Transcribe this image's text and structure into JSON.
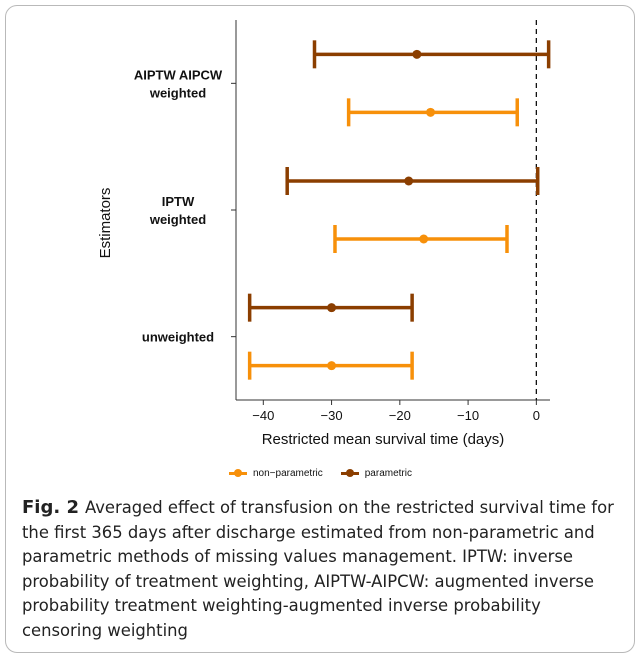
{
  "chart_data": {
    "type": "errorbar",
    "xlabel": "Restricted mean survival time (days)",
    "ylabel": "Estimators",
    "xlim": [
      -44,
      2
    ],
    "xticks": [
      -40,
      -30,
      -20,
      -10,
      0
    ],
    "reference_line": 0,
    "categories": [
      "AIPTW AIPCW weighted",
      "IPTW weighted",
      "unweighted"
    ],
    "category_label_lines": [
      [
        "AIPTW AIPCW",
        "weighted"
      ],
      [
        "IPTW",
        "weighted"
      ],
      [
        "unweighted"
      ]
    ],
    "legend_position": "bottom",
    "series": [
      {
        "name": "non−parametric",
        "color": "#F7900A",
        "estimates": [
          -15.5,
          -16.5,
          -30.0
        ],
        "lower": [
          -27.5,
          -29.5,
          -42.0
        ],
        "upper": [
          -2.8,
          -4.3,
          -18.2
        ]
      },
      {
        "name": "parametric",
        "color": "#8B3E00",
        "estimates": [
          -17.5,
          -18.7,
          -30.0
        ],
        "lower": [
          -32.5,
          -36.5,
          -42.0
        ],
        "upper": [
          1.8,
          0.2,
          -18.2
        ]
      }
    ]
  },
  "caption": {
    "label": "Fig. 2",
    "text": "Averaged effect of transfusion on the restricted survival time for the first 365 days after discharge estimated from non-parametric and parametric methods of missing values management. IPTW: inverse probability of treatment weighting, AIPTW-AIPCW: augmented inverse probability treatment weighting-augmented inverse probability censoring weighting"
  }
}
